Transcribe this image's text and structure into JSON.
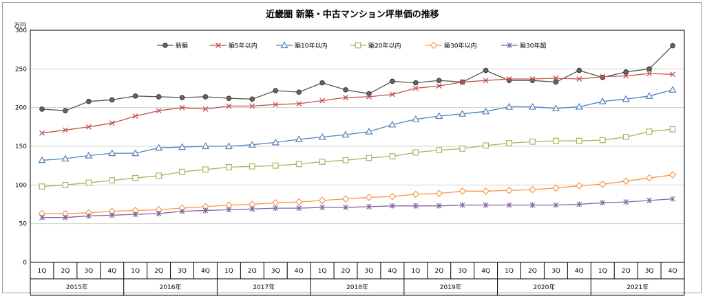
{
  "chart_data": {
    "type": "line",
    "title": "近畿圏 新築・中古マンション坪単価の推移",
    "unit_label": "万円",
    "ylim": [
      0,
      300
    ],
    "yticks": [
      0,
      50,
      100,
      150,
      200,
      250,
      300
    ],
    "grid": "horizontal",
    "legend_position": "top",
    "x": [
      "1Q",
      "2Q",
      "3Q",
      "4Q",
      "1Q",
      "2Q",
      "3Q",
      "4Q",
      "1Q",
      "2Q",
      "3Q",
      "4Q",
      "1Q",
      "2Q",
      "3Q",
      "4Q",
      "1Q",
      "2Q",
      "3Q",
      "4Q",
      "1Q",
      "2Q",
      "3Q",
      "4Q",
      "1Q",
      "2Q",
      "3Q",
      "4Q"
    ],
    "year_groups": [
      "2015年",
      "2016年",
      "2017年",
      "2018年",
      "2019年",
      "2020年",
      "2021年"
    ],
    "series": [
      {
        "name": "新築",
        "color": "#555555",
        "marker": "circle",
        "values": [
          198,
          196,
          208,
          210,
          215,
          214,
          213,
          214,
          212,
          211,
          222,
          220,
          232,
          223,
          218,
          234,
          232,
          235,
          233,
          248,
          235,
          235,
          233,
          248,
          239,
          246,
          250,
          280
        ]
      },
      {
        "name": "築5年以内",
        "color": "#c0504d",
        "marker": "x",
        "values": [
          167,
          171,
          175,
          180,
          189,
          196,
          200,
          198,
          202,
          202,
          204,
          205,
          209,
          213,
          214,
          217,
          225,
          228,
          233,
          235,
          237,
          237,
          238,
          237,
          240,
          241,
          244,
          243
        ]
      },
      {
        "name": "築10年以内",
        "color": "#4f81bd",
        "marker": "triangle",
        "values": [
          132,
          134,
          138,
          141,
          141,
          148,
          149,
          150,
          150,
          152,
          155,
          159,
          162,
          165,
          169,
          178,
          185,
          189,
          192,
          195,
          201,
          201,
          199,
          201,
          208,
          211,
          215,
          223
        ]
      },
      {
        "name": "築20年以内",
        "color": "#9bbb59",
        "marker": "square",
        "values": [
          98,
          100,
          103,
          106,
          109,
          112,
          117,
          120,
          123,
          124,
          125,
          127,
          130,
          132,
          135,
          137,
          142,
          145,
          147,
          151,
          154,
          156,
          157,
          157,
          158,
          162,
          169,
          172
        ]
      },
      {
        "name": "築30年以内",
        "color": "#f79646",
        "marker": "diamond",
        "values": [
          63,
          63,
          64,
          66,
          67,
          68,
          70,
          72,
          74,
          75,
          77,
          78,
          80,
          82,
          84,
          85,
          88,
          89,
          92,
          92,
          93,
          94,
          96,
          99,
          101,
          105,
          109,
          113
        ]
      },
      {
        "name": "築30年超",
        "color": "#8064a2",
        "marker": "asterisk",
        "values": [
          58,
          58,
          60,
          61,
          62,
          63,
          66,
          67,
          68,
          69,
          70,
          70,
          71,
          71,
          72,
          73,
          73,
          73,
          74,
          74,
          74,
          74,
          74,
          75,
          77,
          78,
          80,
          82
        ]
      }
    ]
  }
}
